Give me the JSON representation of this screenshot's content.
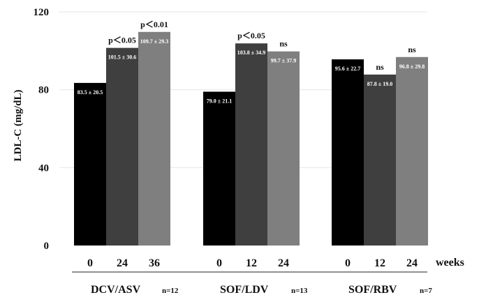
{
  "chart_data": {
    "type": "bar",
    "ylabel": "LDL-C (mg/dL)",
    "xunit": "weeks",
    "ylim": [
      0,
      120
    ],
    "yticks": [
      0,
      40,
      80,
      120
    ],
    "grid": true,
    "colors": [
      "#000000",
      "#3f3f3f",
      "#7f7f7f"
    ],
    "groups": [
      {
        "name": "DCV/ASV",
        "n": "n=12",
        "bars": [
          {
            "week": "0",
            "value": 83.5,
            "label": "83.5 ± 20.5",
            "sig": ""
          },
          {
            "week": "24",
            "value": 101.5,
            "label": "101.5 ± 30.6",
            "sig": "p＜0.05"
          },
          {
            "week": "36",
            "value": 109.7,
            "label": "109.7 ± 29.3",
            "sig": "p＜0.01"
          }
        ]
      },
      {
        "name": "SOF/LDV",
        "n": "n=13",
        "bars": [
          {
            "week": "0",
            "value": 79.0,
            "label": "79.0 ± 21.1",
            "sig": ""
          },
          {
            "week": "12",
            "value": 103.8,
            "label": "103.8 ± 34.9",
            "sig": "p＜0.05"
          },
          {
            "week": "24",
            "value": 99.7,
            "label": "99.7 ± 37.9",
            "sig": "ns"
          }
        ]
      },
      {
        "name": "SOF/RBV",
        "n": "n=7",
        "bars": [
          {
            "week": "0",
            "value": 95.6,
            "label": "95.6 ± 22.7",
            "sig": ""
          },
          {
            "week": "12",
            "value": 87.8,
            "label": "87.8 ± 19.0",
            "sig": "ns"
          },
          {
            "week": "24",
            "value": 96.8,
            "label": "96.8 ± 29.8",
            "sig": "ns"
          }
        ]
      }
    ]
  }
}
